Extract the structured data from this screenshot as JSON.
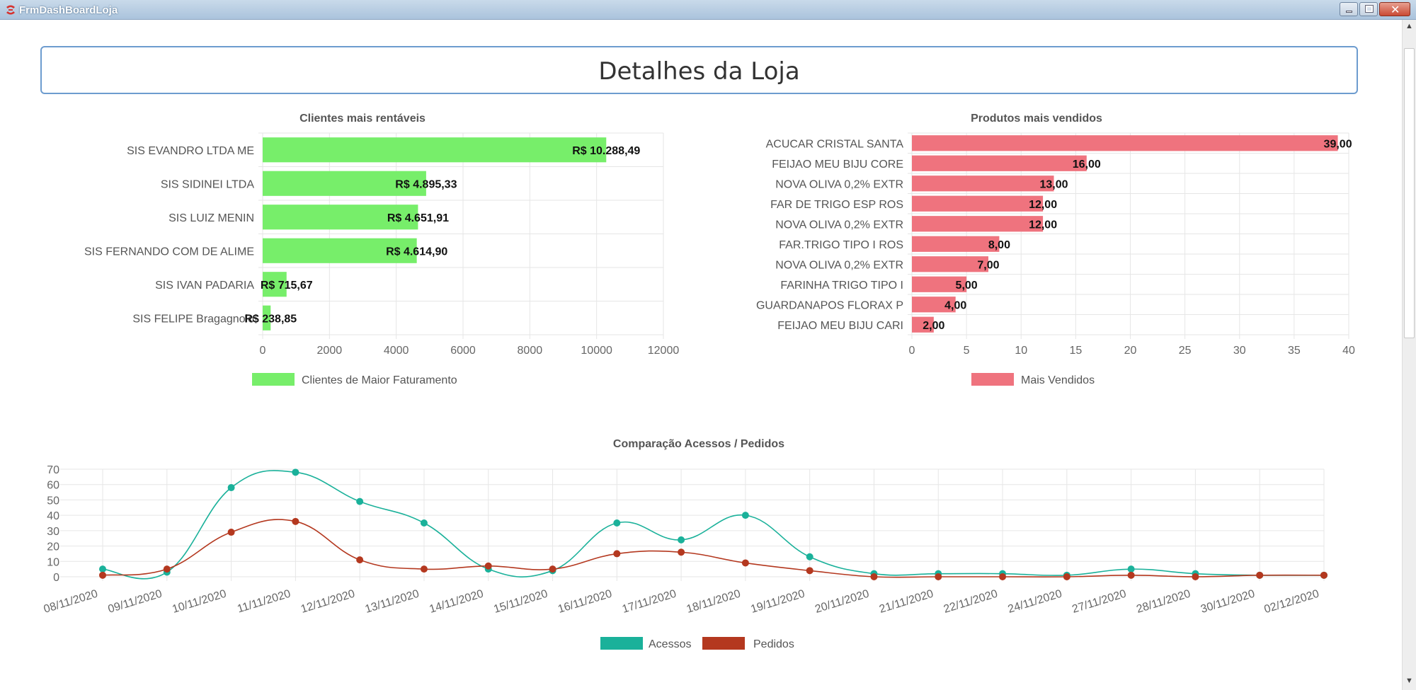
{
  "window": {
    "title": "FrmDashBoardLoja",
    "app_icon": "app-logo-icon",
    "controls": [
      "minimize-icon",
      "maximize-icon",
      "close-icon"
    ]
  },
  "header": {
    "title": "Detalhes da Loja"
  },
  "colors": {
    "green_bar": "#77ee6a",
    "red_bar": "#ef737e",
    "acessos": "#1ab19a",
    "pedidos": "#b4381f",
    "header_border": "#6d9ccf"
  },
  "chart_data": [
    {
      "id": "clientes",
      "type": "bar",
      "orientation": "horizontal",
      "title": "Clientes mais rentáveis",
      "categories": [
        "SIS EVANDRO LTDA ME",
        "SIS SIDINEI LTDA",
        "SIS LUIZ MENIN",
        "SIS FERNANDO COM DE ALIME",
        "SIS IVAN PADARIA",
        "SIS FELIPE Bragagnolo"
      ],
      "values": [
        10288.49,
        4895.33,
        4651.91,
        4614.9,
        715.67,
        238.85
      ],
      "data_labels": [
        "R$ 10.288,49",
        "R$ 4.895,33",
        "R$ 4.651,91",
        "R$ 4.614,90",
        "R$ 715,67",
        "R$ 238,85"
      ],
      "xlim": [
        0,
        12000
      ],
      "ticks": [
        "0",
        "2000",
        "4000",
        "6000",
        "8000",
        "10000",
        "12000"
      ],
      "series": [
        {
          "name": "Clientes de Maior Faturamento",
          "color": "#77ee6a"
        }
      ],
      "legend": "bottom",
      "grid": true
    },
    {
      "id": "produtos",
      "type": "bar",
      "orientation": "horizontal",
      "title": "Produtos mais vendidos",
      "categories": [
        "ACUCAR CRISTAL SANTA",
        "FEIJAO MEU BIJU CORE",
        "NOVA OLIVA 0,2% EXTR",
        "FAR DE TRIGO ESP ROS",
        "NOVA OLIVA 0,2% EXTR",
        "FAR.TRIGO TIPO I ROS",
        "NOVA OLIVA 0,2% EXTR",
        "FARINHA TRIGO TIPO I",
        "GUARDANAPOS FLORAX P",
        "FEIJAO MEU BIJU CARI"
      ],
      "values": [
        39,
        16,
        13,
        12,
        12,
        8,
        7,
        5,
        4,
        2
      ],
      "data_labels": [
        "39,00",
        "16,00",
        "13,00",
        "12,00",
        "12,00",
        "8,00",
        "7,00",
        "5,00",
        "4,00",
        "2,00"
      ],
      "xlim": [
        0,
        40
      ],
      "ticks": [
        "0",
        "5",
        "10",
        "15",
        "20",
        "25",
        "30",
        "35",
        "40"
      ],
      "series": [
        {
          "name": "Mais Vendidos",
          "color": "#ef737e"
        }
      ],
      "legend": "bottom",
      "grid": true
    },
    {
      "id": "acessos",
      "type": "line",
      "title": "Comparação Acessos / Pedidos",
      "categories": [
        "08/11/2020",
        "09/11/2020",
        "10/11/2020",
        "11/11/2020",
        "12/11/2020",
        "13/11/2020",
        "14/11/2020",
        "15/11/2020",
        "16/11/2020",
        "17/11/2020",
        "18/11/2020",
        "19/11/2020",
        "20/11/2020",
        "21/11/2020",
        "22/11/2020",
        "24/11/2020",
        "27/11/2020",
        "28/11/2020",
        "30/11/2020",
        "02/12/2020"
      ],
      "series": [
        {
          "name": "Acessos",
          "color": "#1ab19a",
          "values": [
            5,
            3,
            58,
            68,
            49,
            35,
            5,
            4,
            35,
            24,
            40,
            13,
            2,
            2,
            2,
            1,
            5,
            2,
            1,
            1
          ]
        },
        {
          "name": "Pedidos",
          "color": "#b4381f",
          "values": [
            1,
            5,
            29,
            36,
            11,
            5,
            7,
            5,
            15,
            16,
            9,
            4,
            0,
            0,
            0,
            0,
            1,
            0,
            1,
            1
          ]
        }
      ],
      "ylim": [
        0,
        70
      ],
      "yticks": [
        "0",
        "10",
        "20",
        "30",
        "40",
        "50",
        "60",
        "70"
      ],
      "legend": "bottom",
      "grid": true,
      "smooth": true
    }
  ]
}
